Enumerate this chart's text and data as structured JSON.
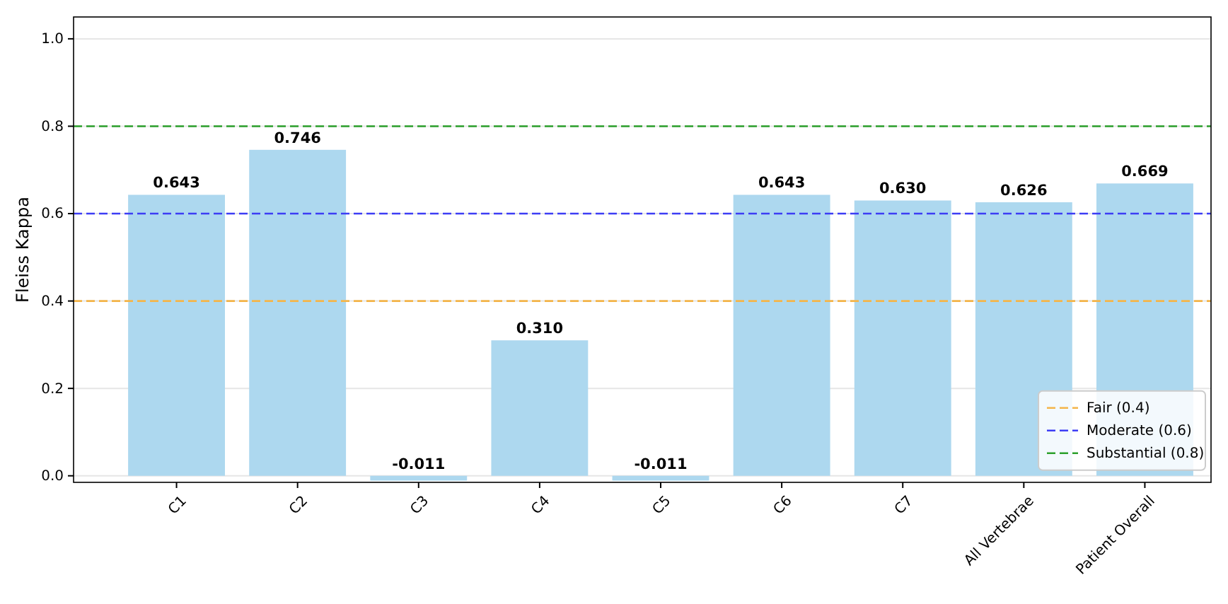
{
  "chart_data": {
    "type": "bar",
    "ylabel": "Fleiss Kappa",
    "categories": [
      "C1",
      "C2",
      "C3",
      "C4",
      "C5",
      "C6",
      "C7",
      "All Vertebrae",
      "Patient Overall"
    ],
    "values": [
      0.643,
      0.746,
      -0.011,
      0.31,
      -0.011,
      0.643,
      0.63,
      0.626,
      0.669
    ],
    "value_labels": [
      "0.643",
      "0.746",
      "-0.011",
      "0.310",
      "-0.011",
      "0.643",
      "0.630",
      "0.626",
      "0.669"
    ],
    "color": "#add8ef",
    "ylim": [
      -0.015,
      1.05
    ],
    "yticks": [
      {
        "value": 0,
        "label": "0.0"
      },
      0.2,
      0.4,
      0.6,
      0.8,
      {
        "value": 1,
        "label": "1.0"
      }
    ],
    "grid": "y",
    "legend": "bottom right",
    "ref_lines": [
      {
        "axis": "y",
        "value": 0.4,
        "label": "Fair (0.4)",
        "color": "#f4b54a",
        "line_style": "dashed"
      },
      {
        "axis": "y",
        "value": 0.6,
        "label": "Moderate (0.6)",
        "color": "#3d3df5",
        "line_style": "dashed"
      },
      {
        "axis": "y",
        "value": 0.8,
        "label": "Substantial (0.8)",
        "color": "#2ca02c",
        "line_style": "dashed"
      }
    ]
  }
}
